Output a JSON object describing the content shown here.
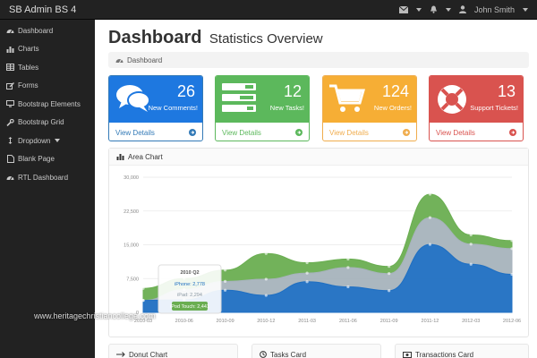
{
  "topbar": {
    "brand": "SB Admin BS 4",
    "user": "John Smith",
    "icons": [
      "envelope-icon",
      "bell-icon",
      "user-icon",
      "caret-down-icon"
    ]
  },
  "sidebar": {
    "items": [
      {
        "label": "Dashboard",
        "icon": "dashboard-icon"
      },
      {
        "label": "Charts",
        "icon": "bar-chart-icon"
      },
      {
        "label": "Tables",
        "icon": "table-icon"
      },
      {
        "label": "Forms",
        "icon": "edit-icon"
      },
      {
        "label": "Bootstrap Elements",
        "icon": "desktop-icon"
      },
      {
        "label": "Bootstrap Grid",
        "icon": "wrench-icon"
      },
      {
        "label": "Dropdown",
        "icon": "arrows-icon"
      },
      {
        "label": "Blank Page",
        "icon": "file-icon"
      },
      {
        "label": "RTL Dashboard",
        "icon": "dashboard-icon"
      }
    ]
  },
  "page": {
    "title": "Dashboard",
    "subtitle": "Statistics Overview",
    "breadcrumb": "Dashboard"
  },
  "cards": [
    {
      "count": "26",
      "label": "New Comments!",
      "link": "View Details",
      "color": "#337ab7",
      "icon": "comments-icon"
    },
    {
      "count": "12",
      "label": "New Tasks!",
      "link": "View Details",
      "color": "#5cb85c",
      "icon": "tasks-icon"
    },
    {
      "count": "124",
      "label": "New Orders!",
      "link": "View Details",
      "color": "#f0ad4e",
      "icon": "shopping-cart-icon"
    },
    {
      "count": "13",
      "label": "Support Tickets!",
      "link": "View Details",
      "color": "#d9534f",
      "icon": "support-icon"
    }
  ],
  "area_chart": {
    "heading": "Area Chart",
    "tooltip": {
      "title": "2010 Q2",
      "lines": [
        "iPhone: 2,778",
        "iPad: 2,294",
        "iPod Touch: 2,441"
      ]
    }
  },
  "bottom_cards": [
    {
      "label": "Donut Chart",
      "icon": "long-arrow-right-icon"
    },
    {
      "label": "Tasks Card",
      "icon": "clock-icon"
    },
    {
      "label": "Transactions Card",
      "icon": "money-icon"
    }
  ],
  "watermark": "www.heritagechristiancollege.com",
  "chart_data": {
    "type": "area",
    "title": "",
    "xlabel": "",
    "ylabel": "",
    "x": [
      "2010 Q1",
      "2010 Q2",
      "2010 Q3",
      "2010 Q4",
      "2011 Q1",
      "2011 Q2",
      "2011 Q3",
      "2011 Q4",
      "2012 Q1",
      "2012 Q2"
    ],
    "x_ticks": [
      "2010-03",
      "2010-06",
      "2010-09",
      "2010-12",
      "2011-03",
      "2011-06",
      "2011-09",
      "2011-12",
      "2012-03",
      "2012-06"
    ],
    "y_ticks": [
      0,
      7500,
      15000,
      22500,
      30000
    ],
    "y_tick_labels": [
      "0",
      "7,500",
      "15,000",
      "22,500",
      "30,000"
    ],
    "ylim": [
      0,
      30000
    ],
    "stacked": true,
    "grid": true,
    "series": [
      {
        "name": "iPhone",
        "color": "#1f6fc2",
        "values": [
          2666,
          2778,
          4912,
          3767,
          6810,
          5670,
          4820,
          15073,
          10687,
          8432
        ]
      },
      {
        "name": "iPad",
        "color": "#a7b3bc",
        "values": [
          0,
          2294,
          1969,
          3597,
          1914,
          4293,
          3795,
          5967,
          4460,
          5713
        ]
      },
      {
        "name": "iPod Touch",
        "color": "#6aae51",
        "values": [
          2647,
          2441,
          2501,
          5689,
          2293,
          1881,
          1588,
          5175,
          2028,
          1791
        ]
      }
    ]
  }
}
